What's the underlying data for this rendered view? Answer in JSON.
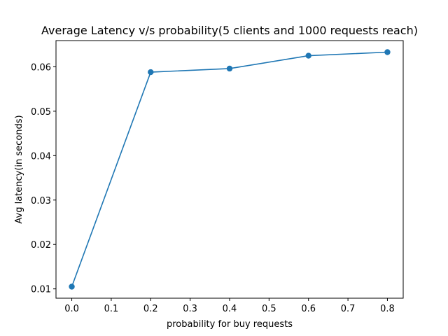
{
  "chart_data": {
    "type": "line",
    "title": "Average Latency v/s probability(5 clients and 1000 requests reach)",
    "xlabel": "probability for buy requests",
    "ylabel": "Avg latency(in seconds)",
    "x": [
      0.0,
      0.2,
      0.4,
      0.6,
      0.8
    ],
    "series": [
      {
        "values": [
          0.0105,
          0.0588,
          0.0596,
          0.0625,
          0.0633
        ]
      }
    ],
    "xlim": [
      -0.04,
      0.84
    ],
    "ylim": [
      0.0079,
      0.0659
    ],
    "xticks": [
      "0.0",
      "0.1",
      "0.2",
      "0.3",
      "0.4",
      "0.5",
      "0.6",
      "0.7",
      "0.8"
    ],
    "yticks": [
      "0.01",
      "0.02",
      "0.03",
      "0.04",
      "0.05",
      "0.06"
    ],
    "grid": false,
    "colors": {
      "line": "#1f77b4",
      "marker": "#1f77b4",
      "axes": "#000000"
    },
    "marker": "circle"
  }
}
